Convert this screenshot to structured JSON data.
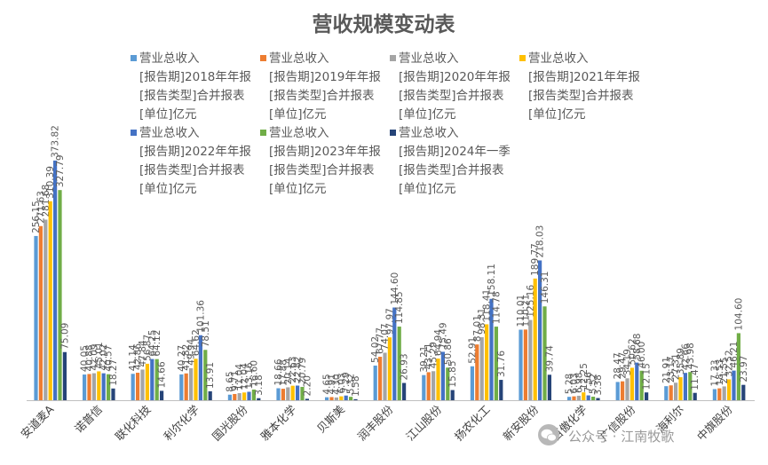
{
  "chart_data": {
    "type": "bar",
    "title": "营收规模变动表",
    "categories": [
      "安道麦A",
      "诺普信",
      "联化科技",
      "利尔化学",
      "国光股份",
      "雅本化学",
      "贝斯美",
      "润丰股份",
      "江山股份",
      "扬农化工",
      "新安股份",
      "百傲化学",
      "广信股份",
      "海利尔",
      "中旗股份"
    ],
    "series": [
      {
        "name": "营业总收入\n[报告期]2018年年报\n[报告类型]合并报表\n[单位]亿元",
        "color": "#5B9BD5",
        "values": [
          256.15,
          40.05,
          41.14,
          40.27,
          8.65,
          18.66,
          4.65,
          54.02,
          39.21,
          52.91,
          110.01,
          5.28,
          28.47,
          21.91,
          17.33
        ]
      },
      {
        "name": "营业总收入\n[报告期]2019年年报\n[报告类型]合并报表\n[单位]亿元",
        "color": "#ED7D31",
        "values": [
          271.63,
          40.88,
          42.86,
          41.82,
          9.71,
          17.88,
          4.91,
          67.77,
          43.71,
          87.01,
          110.21,
          6.03,
          29.47,
          23.17,
          18.53
        ]
      },
      {
        "name": "营业总收入\n[报告期]2020年年报\n[报告类型]合并报表\n[单位]亿元",
        "color": "#A5A5A5",
        "values": [
          281.68,
          42.09,
          47.84,
          49.94,
          11.04,
          20.14,
          4.3,
          74.07,
          45.29,
          98.31,
          125.16,
          6.98,
          34.19,
          27.31,
          21.55
        ]
      },
      {
        "name": "营业总收入\n[报告期]2021年年报\n[报告类型]合并报表\n[单位]亿元",
        "color": "#FFC000",
        "values": [
          310.39,
          45.01,
          56.87,
          64.62,
          12.04,
          22.63,
          6.03,
          97.97,
          64.94,
          118.41,
          189.77,
          12.25,
          50.62,
          35.89,
          32.52
        ]
      },
      {
        "name": "营业总收入\n[报告期]2022年年报\n[报告类型]合并报表\n[单位]亿元",
        "color": "#4472C4",
        "values": [
          373.82,
          42.02,
          64.25,
          101.36,
          13.16,
          22.82,
          7.29,
          144.6,
          75.49,
          158.11,
          218.03,
          7.56,
          58.68,
          42.66,
          46.21
        ]
      },
      {
        "name": "营业总收入\n[报告期]2023年年报\n[报告类型]合并报表\n[单位]亿元",
        "color": "#70AD47",
        "values": [
          327.79,
          40.57,
          64.12,
          78.51,
          16.6,
          20.79,
          5.32,
          114.85,
          50.86,
          114.78,
          146.31,
          5.52,
          46.0,
          43.98,
          104.6
        ]
      },
      {
        "name": "营业总收入\n[报告期]2024年一季\n[报告类型]合并报表\n[单位]亿元",
        "color": "#264478",
        "values": [
          75.09,
          18.27,
          14.66,
          13.91,
          3.18,
          2.2,
          1.58,
          26.93,
          15.85,
          31.76,
          39.74,
          3.38,
          12.15,
          11.47,
          23.97
        ]
      }
    ],
    "ylim": [
      0,
      400
    ],
    "grid": false,
    "legend_position": "top",
    "data_labels": true,
    "xlabel": "",
    "ylabel": ""
  },
  "watermark": {
    "icon": "wechat-icon",
    "text": "公众号 · 江南牧歌"
  }
}
